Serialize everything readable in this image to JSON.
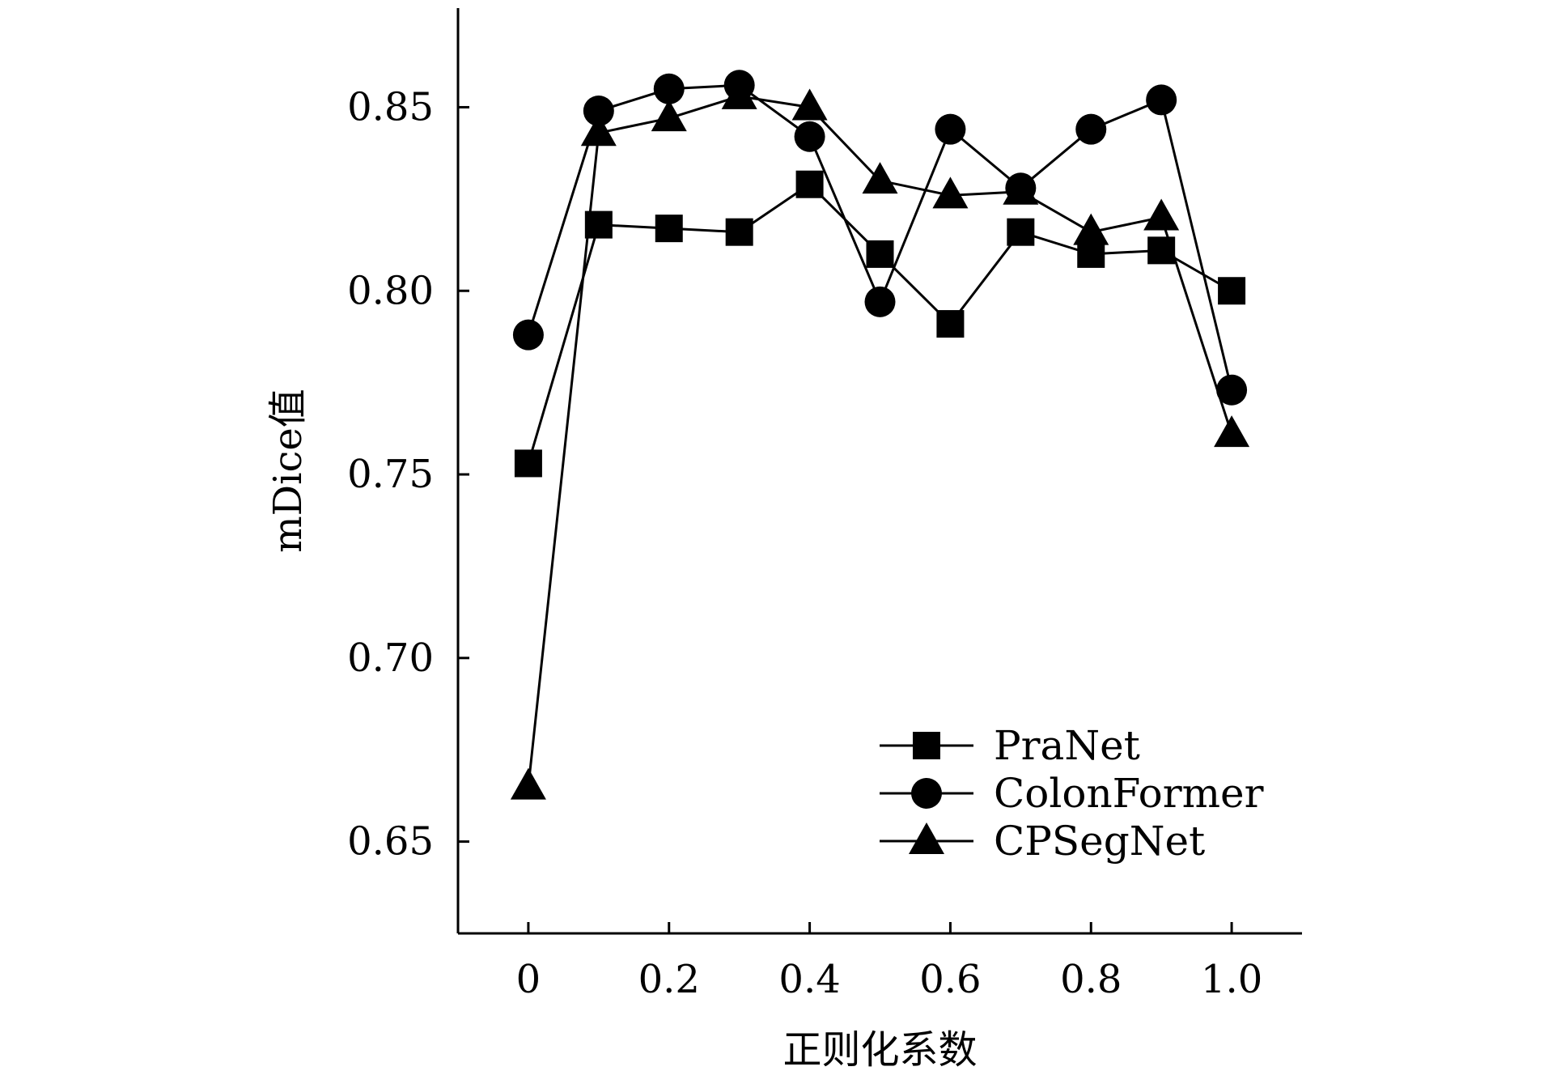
{
  "chart_data": {
    "type": "line",
    "title": "",
    "xlabel": "正则化系数",
    "ylabel": "mDice值",
    "xlim": [
      -0.1,
      1.1
    ],
    "ylim": [
      0.625,
      0.877
    ],
    "x_ticks": [
      0,
      0.2,
      0.4,
      0.6,
      0.8,
      1.0
    ],
    "x_tick_labels": [
      "0",
      "0.2",
      "0.4",
      "0.6",
      "0.8",
      "1.0"
    ],
    "y_ticks": [
      0.65,
      0.7,
      0.75,
      0.8,
      0.85
    ],
    "y_tick_labels": [
      "0.65",
      "0.70",
      "0.75",
      "0.80",
      "0.85"
    ],
    "grid": false,
    "legend_position": "bottom-right",
    "x": [
      0,
      0.1,
      0.2,
      0.3,
      0.4,
      0.5,
      0.6,
      0.7,
      0.8,
      0.9,
      1.0
    ],
    "series": [
      {
        "name": "PraNet",
        "marker": "square",
        "color": "#000000",
        "values": [
          0.753,
          0.818,
          0.817,
          0.816,
          0.829,
          0.81,
          0.791,
          0.816,
          0.81,
          0.811,
          0.8
        ]
      },
      {
        "name": "ColonFormer",
        "marker": "circle",
        "color": "#000000",
        "values": [
          0.788,
          0.849,
          0.855,
          0.856,
          0.842,
          0.797,
          0.844,
          0.828,
          0.844,
          0.852,
          0.773
        ]
      },
      {
        "name": "CPSegNet",
        "marker": "triangle",
        "color": "#000000",
        "values": [
          0.665,
          0.843,
          0.847,
          0.853,
          0.85,
          0.83,
          0.826,
          0.827,
          0.816,
          0.82,
          0.761
        ]
      }
    ]
  }
}
